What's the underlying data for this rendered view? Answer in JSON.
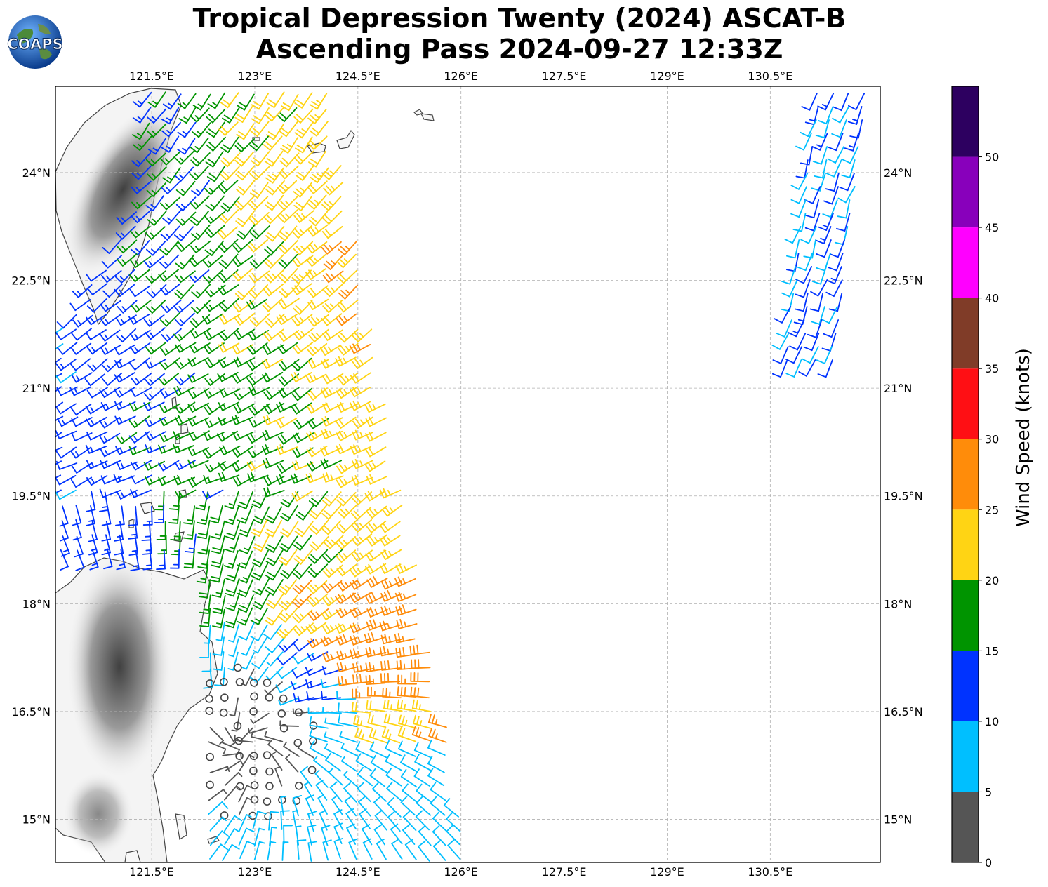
{
  "title": {
    "line1": "Tropical Depression Twenty (2024) ASCAT-B",
    "line2": "Ascending Pass 2024-09-27 12:33Z"
  },
  "logo": {
    "text": "COAPS"
  },
  "map": {
    "lon_range": [
      120.1,
      132.1
    ],
    "lat_range": [
      14.4,
      25.2
    ],
    "lon_ticks": [
      "121.5°E",
      "123°E",
      "124.5°E",
      "126°E",
      "127.5°E",
      "129°E",
      "130.5°E"
    ],
    "lat_ticks": [
      "15°N",
      "16.5°N",
      "18°N",
      "19.5°N",
      "21°N",
      "22.5°N",
      "24°N"
    ],
    "gridlines": true
  },
  "colorbar": {
    "title": "Wind Speed (knots)",
    "ticks": [
      "0",
      "5",
      "10",
      "15",
      "20",
      "25",
      "30",
      "35",
      "40",
      "45",
      "50"
    ],
    "bins": [
      {
        "from": 0,
        "to": 5,
        "color": "#555555"
      },
      {
        "from": 5,
        "to": 10,
        "color": "#00bfff"
      },
      {
        "from": 10,
        "to": 15,
        "color": "#0033ff"
      },
      {
        "from": 15,
        "to": 20,
        "color": "#009400"
      },
      {
        "from": 20,
        "to": 25,
        "color": "#ffd414"
      },
      {
        "from": 25,
        "to": 30,
        "color": "#ff8c0a"
      },
      {
        "from": 30,
        "to": 35,
        "color": "#ff0f14"
      },
      {
        "from": 35,
        "to": 40,
        "color": "#803c28"
      },
      {
        "from": 40,
        "to": 45,
        "color": "#ff00ff"
      },
      {
        "from": 45,
        "to": 50,
        "color": "#8800bb"
      },
      {
        "from": 50,
        "to": 55,
        "color": "#2d0060"
      }
    ]
  },
  "colors": {
    "land": "#ffffff",
    "coast": "#444444",
    "grid": "#b0b0b0"
  }
}
